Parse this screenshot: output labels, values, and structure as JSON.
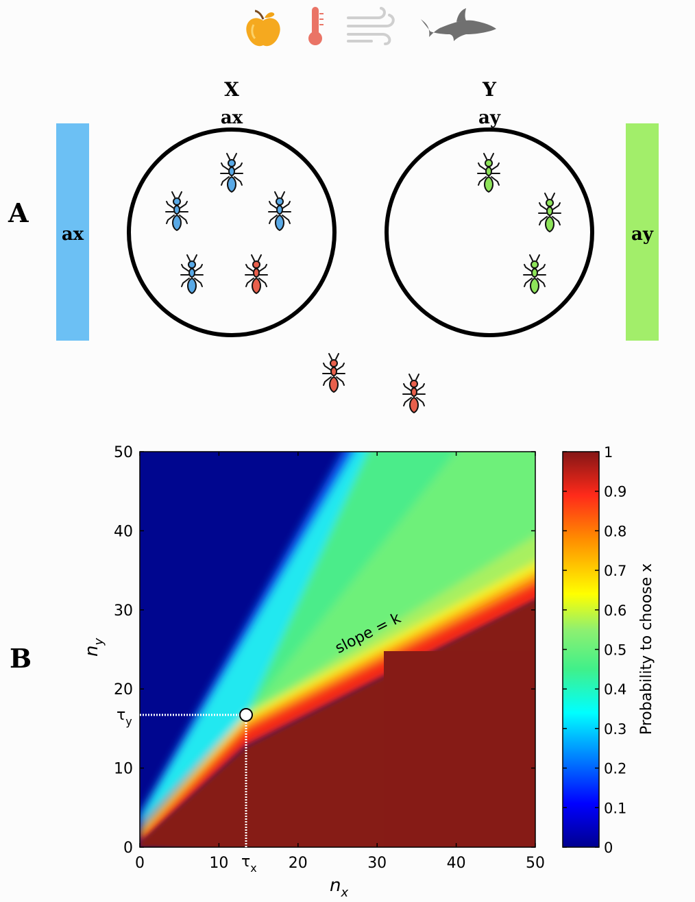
{
  "panel_a": {
    "letter": "A",
    "icons": [
      "apple-icon",
      "thermometer-icon",
      "wind-icon",
      "shark-icon"
    ],
    "site_x": {
      "title": "X",
      "subtitle": "ax"
    },
    "site_y": {
      "title": "Y",
      "subtitle": "ay"
    },
    "bar_x": {
      "label": "ax",
      "color": "#6cc0f4"
    },
    "bar_y": {
      "label": "ay",
      "color": "#a2ee6a"
    },
    "ant_colors": {
      "blue": "#59a9e6",
      "red": "#e8604c",
      "green": "#8ee45a"
    }
  },
  "panel_b": {
    "letter": "B",
    "slope_label": "slope = k",
    "threshold_x_label": "τx",
    "threshold_y_label": "τy",
    "threshold_x_main": "τ",
    "threshold_x_sub": "x",
    "threshold_y_main": "τ",
    "threshold_y_sub": "y",
    "x_axis_main": "n",
    "x_axis_sub": "x",
    "y_axis_main": "n",
    "y_axis_sub": "y",
    "colorbar_label": "Probability to choose x"
  },
  "chart_data": {
    "type": "heatmap",
    "title": "",
    "xlabel": "nx",
    "ylabel": "ny",
    "xlim": [
      0,
      50
    ],
    "ylim": [
      0,
      50
    ],
    "xticks": [
      "0",
      "10",
      "20",
      "30",
      "40",
      "50"
    ],
    "yticks": [
      "0",
      "10",
      "20",
      "30",
      "40",
      "50"
    ],
    "threshold_point": {
      "x": 13.5,
      "y": 16.8
    },
    "colorbar": {
      "label": "Probability to choose x",
      "range": [
        0,
        1
      ],
      "ticks": [
        "0",
        "0.1",
        "0.2",
        "0.3",
        "0.4",
        "0.5",
        "0.6",
        "0.7",
        "0.8",
        "0.9",
        "1"
      ],
      "colormap": "jet"
    }
  }
}
